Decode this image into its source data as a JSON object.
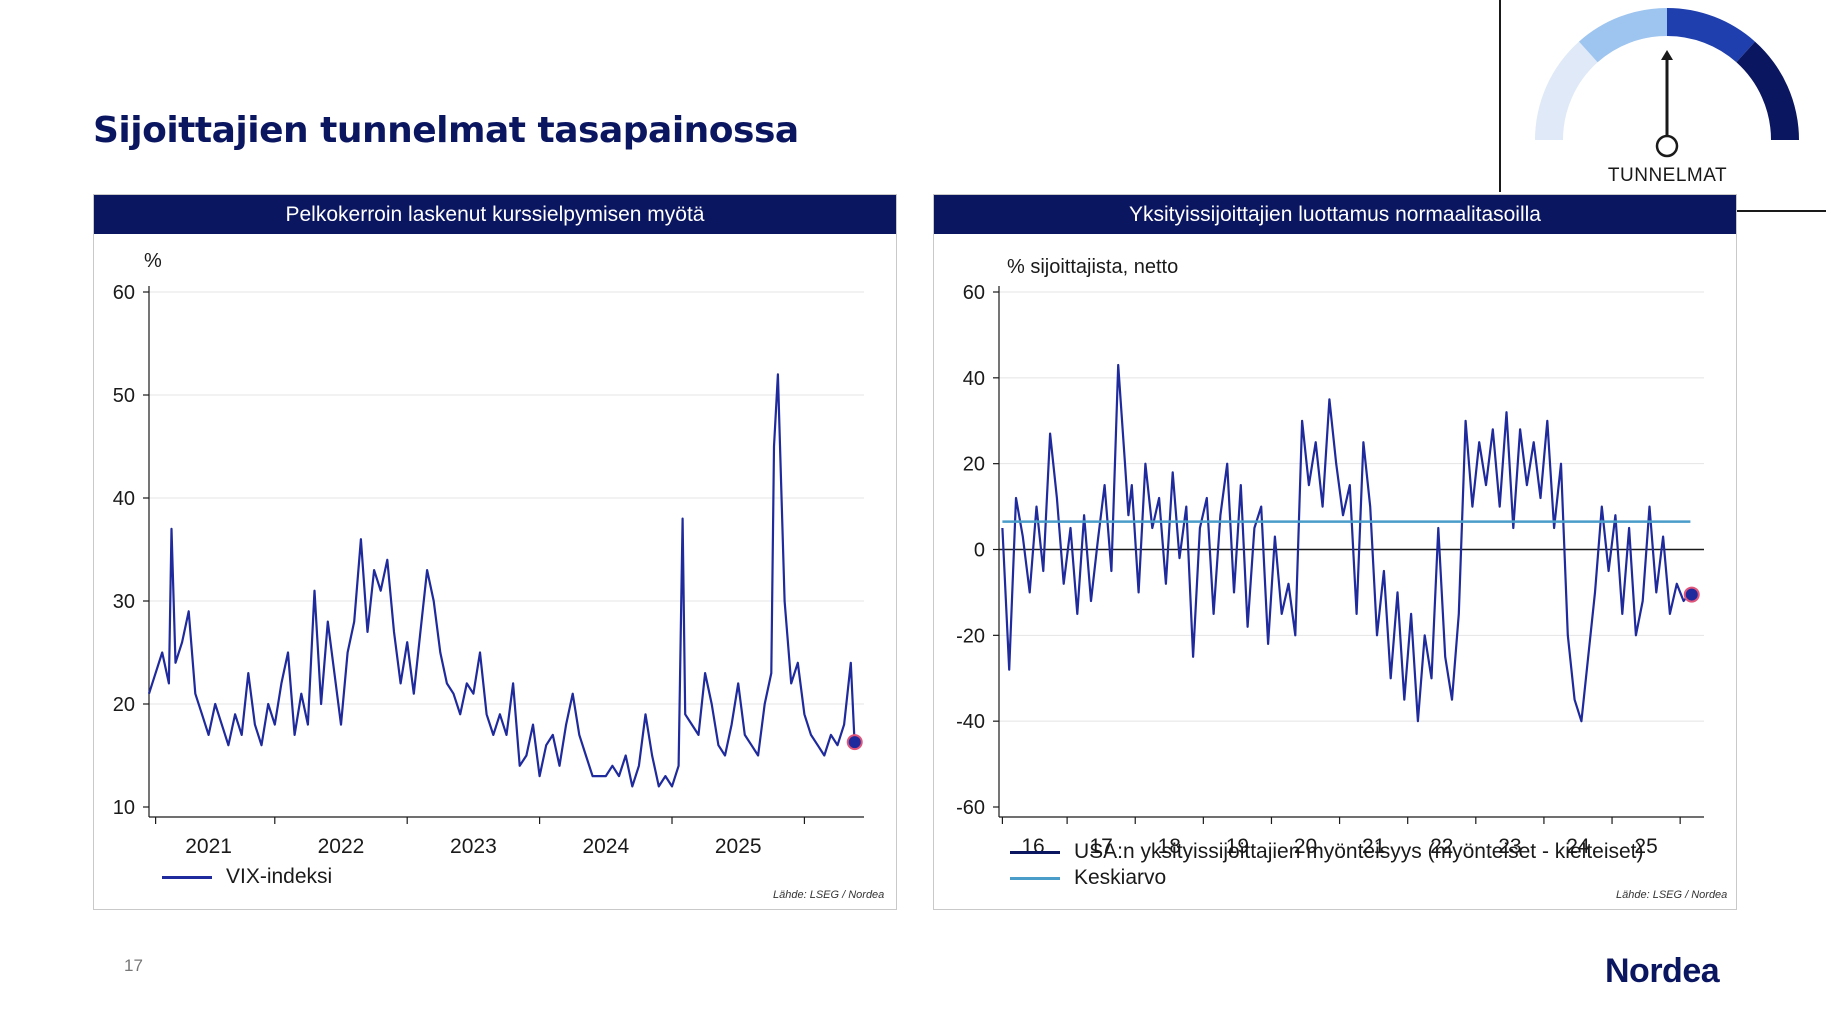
{
  "slide": {
    "title": "Sijoittajien tunnelmat tasapainossa",
    "page_number": "17",
    "logo": "Nordea",
    "gauge_label": "TUNNELMAT",
    "gauge_icon": "sentiment-gauge-icon",
    "colors": {
      "navy": "#0b1660",
      "series": "#1f2a9c",
      "mean": "#4a9cc9",
      "gauge_light": "#dfe9f7",
      "gauge_mid": "#9ec5ef",
      "gauge_dark": "#1f3fae",
      "gauge_darkest": "#0b1660"
    }
  },
  "chart_data": [
    {
      "type": "line",
      "title": "Pelkokerroin laskenut kurssielpymisen myötä",
      "ylabel": "%",
      "xlabel": "",
      "ylim": [
        10,
        60
      ],
      "yticks": [
        10,
        20,
        30,
        40,
        50,
        60
      ],
      "xlim": [
        2020.55,
        2025.95
      ],
      "xtick_labels": [
        {
          "x": 2021,
          "label": "2021"
        },
        {
          "x": 2022,
          "label": "2022"
        },
        {
          "x": 2023,
          "label": "2023"
        },
        {
          "x": 2024,
          "label": "2024"
        },
        {
          "x": 2025,
          "label": "2025"
        }
      ],
      "xtick_marks": [
        2020.6,
        2021.5,
        2022.5,
        2023.5,
        2024.5,
        2025.5
      ],
      "legend": "bottom-left",
      "source": "Lähde: LSEG / Nordea",
      "series": [
        {
          "name": "VIX-indeksi",
          "color": "#1f2a9c",
          "x": [
            2020.55,
            2020.6,
            2020.65,
            2020.7,
            2020.72,
            2020.75,
            2020.8,
            2020.85,
            2020.9,
            2020.95,
            2021.0,
            2021.05,
            2021.1,
            2021.15,
            2021.2,
            2021.25,
            2021.3,
            2021.35,
            2021.4,
            2021.45,
            2021.5,
            2021.55,
            2021.6,
            2021.65,
            2021.7,
            2021.75,
            2021.8,
            2021.85,
            2021.9,
            2021.95,
            2022.0,
            2022.05,
            2022.1,
            2022.15,
            2022.2,
            2022.25,
            2022.3,
            2022.35,
            2022.4,
            2022.45,
            2022.5,
            2022.55,
            2022.6,
            2022.65,
            2022.7,
            2022.75,
            2022.8,
            2022.85,
            2022.9,
            2022.95,
            2023.0,
            2023.05,
            2023.1,
            2023.15,
            2023.2,
            2023.25,
            2023.3,
            2023.35,
            2023.4,
            2023.45,
            2023.5,
            2023.55,
            2023.6,
            2023.65,
            2023.7,
            2023.75,
            2023.8,
            2023.85,
            2023.9,
            2023.95,
            2024.0,
            2024.05,
            2024.1,
            2024.15,
            2024.2,
            2024.25,
            2024.3,
            2024.35,
            2024.4,
            2024.45,
            2024.5,
            2024.55,
            2024.58,
            2024.6,
            2024.65,
            2024.7,
            2024.75,
            2024.8,
            2024.85,
            2024.9,
            2024.95,
            2025.0,
            2025.05,
            2025.1,
            2025.15,
            2025.2,
            2025.25,
            2025.27,
            2025.3,
            2025.35,
            2025.4,
            2025.45,
            2025.5,
            2025.55,
            2025.6,
            2025.65,
            2025.7,
            2025.75,
            2025.8,
            2025.85,
            2025.88
          ],
          "values": [
            21,
            23,
            25,
            22,
            37,
            24,
            26,
            29,
            21,
            19,
            17,
            20,
            18,
            16,
            19,
            17,
            23,
            18,
            16,
            20,
            18,
            22,
            25,
            17,
            21,
            18,
            31,
            20,
            28,
            23,
            18,
            25,
            28,
            36,
            27,
            33,
            31,
            34,
            27,
            22,
            26,
            21,
            27,
            33,
            30,
            25,
            22,
            21,
            19,
            22,
            21,
            25,
            19,
            17,
            19,
            17,
            22,
            14,
            15,
            18,
            13,
            16,
            17,
            14,
            18,
            21,
            17,
            15,
            13,
            13,
            13,
            14,
            13,
            15,
            12,
            14,
            19,
            15,
            12,
            13,
            12,
            14,
            38,
            19,
            18,
            17,
            23,
            20,
            16,
            15,
            18,
            22,
            17,
            16,
            15,
            20,
            23,
            45,
            52,
            30,
            22,
            24,
            19,
            17,
            16,
            15,
            17,
            16,
            18,
            24,
            16
          ]
        }
      ],
      "last_point": {
        "x": 2025.88,
        "y": 16.3
      }
    },
    {
      "type": "line",
      "title": "Yksityissijoittajien luottamus normaalitasoilla",
      "ylabel": "% sijoittajista, netto",
      "xlabel": "",
      "ylim": [
        -60,
        60
      ],
      "yticks": [
        -60,
        -40,
        -20,
        0,
        20,
        40,
        60
      ],
      "xlim": [
        2015.6,
        2025.95
      ],
      "xtick_labels": [
        {
          "x": 2016.1,
          "label": "16"
        },
        {
          "x": 2017.1,
          "label": "17"
        },
        {
          "x": 2018.1,
          "label": "18"
        },
        {
          "x": 2019.1,
          "label": "19"
        },
        {
          "x": 2020.1,
          "label": "20"
        },
        {
          "x": 2021.1,
          "label": "21"
        },
        {
          "x": 2022.1,
          "label": "22"
        },
        {
          "x": 2023.1,
          "label": "23"
        },
        {
          "x": 2024.1,
          "label": "24"
        },
        {
          "x": 2025.1,
          "label": "25"
        }
      ],
      "xtick_marks": [
        2015.65,
        2016.6,
        2017.6,
        2018.6,
        2019.6,
        2020.6,
        2021.6,
        2022.6,
        2023.6,
        2024.6,
        2025.6
      ],
      "legend": "bottom-left",
      "source": "Lähde: LSEG / Nordea",
      "series": [
        {
          "name": "USA:n yksityissijoittajien myönteisyys (myönteiset - kielteiset)",
          "color": "#1f2a9c",
          "x": [
            2015.65,
            2015.75,
            2015.8,
            2015.85,
            2015.95,
            2016.05,
            2016.15,
            2016.25,
            2016.35,
            2016.45,
            2016.55,
            2016.65,
            2016.75,
            2016.85,
            2016.95,
            2017.05,
            2017.15,
            2017.25,
            2017.35,
            2017.45,
            2017.5,
            2017.55,
            2017.65,
            2017.75,
            2017.85,
            2017.95,
            2018.05,
            2018.15,
            2018.25,
            2018.35,
            2018.45,
            2018.55,
            2018.65,
            2018.75,
            2018.85,
            2018.95,
            2019.05,
            2019.15,
            2019.25,
            2019.35,
            2019.45,
            2019.55,
            2019.65,
            2019.75,
            2019.85,
            2019.95,
            2020.05,
            2020.15,
            2020.25,
            2020.35,
            2020.45,
            2020.55,
            2020.65,
            2020.75,
            2020.85,
            2020.95,
            2021.05,
            2021.15,
            2021.25,
            2021.35,
            2021.45,
            2021.55,
            2021.65,
            2021.75,
            2021.85,
            2021.95,
            2022.05,
            2022.15,
            2022.25,
            2022.35,
            2022.45,
            2022.55,
            2022.65,
            2022.75,
            2022.85,
            2022.95,
            2023.05,
            2023.15,
            2023.25,
            2023.35,
            2023.45,
            2023.55,
            2023.65,
            2023.75,
            2023.85,
            2023.95,
            2024.05,
            2024.15,
            2024.25,
            2024.35,
            2024.45,
            2024.55,
            2024.65,
            2024.75,
            2024.85,
            2024.95,
            2025.05,
            2025.15,
            2025.25,
            2025.35,
            2025.45,
            2025.55,
            2025.65,
            2025.75
          ],
          "values": [
            5,
            -28,
            -8,
            12,
            3,
            -10,
            10,
            -5,
            27,
            12,
            -8,
            5,
            -15,
            8,
            -12,
            2,
            15,
            -5,
            43,
            20,
            8,
            15,
            -10,
            20,
            5,
            12,
            -8,
            18,
            -2,
            10,
            -25,
            5,
            12,
            -15,
            8,
            20,
            -10,
            15,
            -18,
            5,
            10,
            -22,
            3,
            -15,
            -8,
            -20,
            30,
            15,
            25,
            10,
            35,
            20,
            8,
            15,
            -15,
            25,
            10,
            -20,
            -5,
            -30,
            -10,
            -35,
            -15,
            -40,
            -20,
            -30,
            5,
            -25,
            -35,
            -15,
            30,
            10,
            25,
            15,
            28,
            10,
            32,
            5,
            28,
            15,
            25,
            12,
            30,
            5,
            20,
            -20,
            -35,
            -40,
            -25,
            -10,
            10,
            -5,
            8,
            -15,
            5,
            -20,
            -12,
            10,
            -10,
            3,
            -15,
            -8,
            -12,
            -10
          ]
        },
        {
          "name": "Keskiarvo",
          "color": "#4a9cc9",
          "x": [
            2015.65,
            2025.75
          ],
          "values": [
            6.5,
            6.5
          ]
        }
      ],
      "last_point": {
        "x": 2025.77,
        "y": -10.5
      }
    }
  ]
}
